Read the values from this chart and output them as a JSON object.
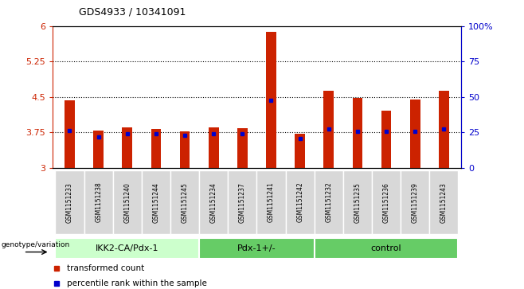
{
  "title": "GDS4933 / 10341091",
  "samples": [
    "GSM1151233",
    "GSM1151238",
    "GSM1151240",
    "GSM1151244",
    "GSM1151245",
    "GSM1151234",
    "GSM1151237",
    "GSM1151241",
    "GSM1151242",
    "GSM1151232",
    "GSM1151235",
    "GSM1151236",
    "GSM1151239",
    "GSM1151243"
  ],
  "bar_values": [
    4.42,
    3.78,
    3.85,
    3.82,
    3.76,
    3.85,
    3.84,
    5.88,
    3.72,
    4.62,
    4.48,
    4.2,
    4.44,
    4.62
  ],
  "percentile_values": [
    3.78,
    3.65,
    3.72,
    3.72,
    3.68,
    3.72,
    3.72,
    4.42,
    3.62,
    3.82,
    3.76,
    3.76,
    3.76,
    3.82
  ],
  "bar_bottom": 3.0,
  "ymin": 3.0,
  "ymax": 6.0,
  "yticks_left": [
    3.0,
    3.75,
    4.5,
    5.25,
    6.0
  ],
  "yticks_right": [
    0,
    25,
    50,
    75,
    100
  ],
  "ytick_labels_left": [
    "3",
    "3.75",
    "4.5",
    "5.25",
    "6"
  ],
  "ytick_labels_right": [
    "0",
    "25",
    "50",
    "75",
    "100%"
  ],
  "hlines": [
    3.75,
    4.5,
    5.25
  ],
  "bar_color": "#cc2200",
  "percentile_color": "#0000cc",
  "group_defs": [
    {
      "label": "IKK2-CA/Pdx-1",
      "start": 0,
      "end": 4,
      "color": "#ccffcc"
    },
    {
      "label": "Pdx-1+/-",
      "start": 5,
      "end": 8,
      "color": "#66cc66"
    },
    {
      "label": "control",
      "start": 9,
      "end": 13,
      "color": "#66cc66"
    }
  ],
  "xlabel_left": "genotype/variation",
  "legend_items": [
    {
      "label": "transformed count",
      "color": "#cc2200"
    },
    {
      "label": "percentile rank within the sample",
      "color": "#0000cc"
    }
  ],
  "bar_width": 0.35,
  "tick_color_left": "#cc2200",
  "tick_color_right": "#0000cc"
}
